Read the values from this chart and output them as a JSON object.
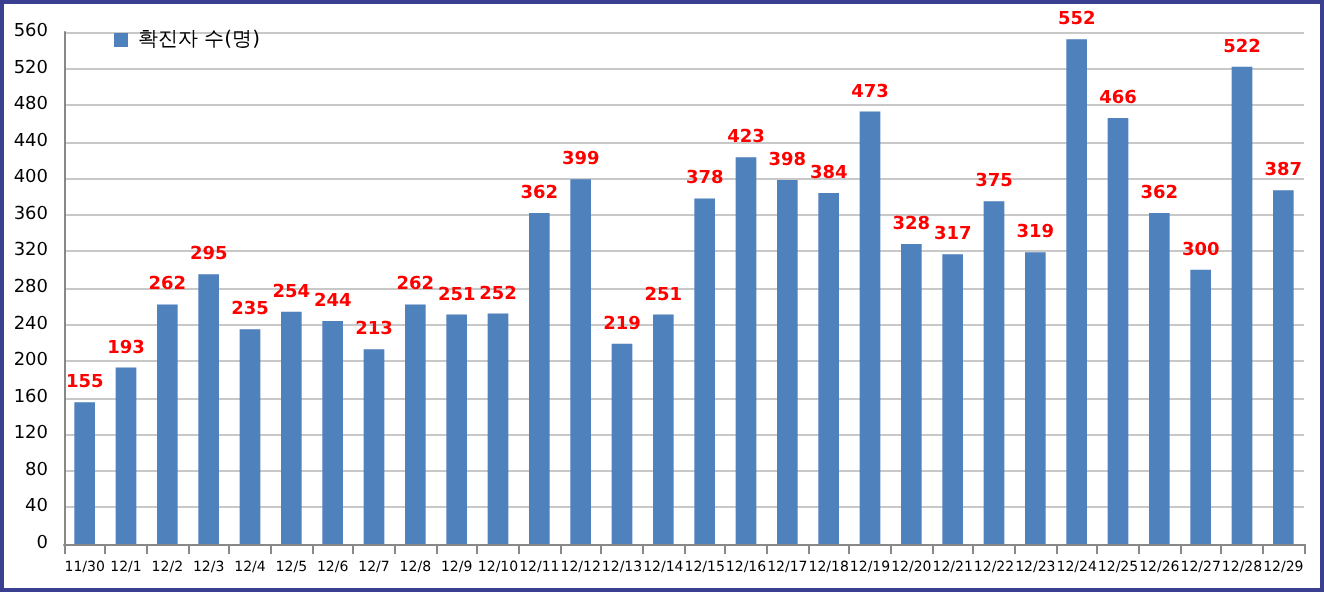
{
  "chart_data": {
    "type": "bar",
    "categories": [
      "11/30",
      "12/1",
      "12/2",
      "12/3",
      "12/4",
      "12/5",
      "12/6",
      "12/7",
      "12/8",
      "12/9",
      "12/10",
      "12/11",
      "12/12",
      "12/13",
      "12/14",
      "12/15",
      "12/16",
      "12/17",
      "12/18",
      "12/19",
      "12/20",
      "12/21",
      "12/22",
      "12/23",
      "12/24",
      "12/25",
      "12/26",
      "12/27",
      "12/28",
      "12/29"
    ],
    "series": [
      {
        "name": "확진자 수(명)",
        "color": "#4f81bd",
        "values": [
          155,
          193,
          262,
          295,
          235,
          254,
          244,
          213,
          262,
          251,
          252,
          362,
          399,
          219,
          251,
          378,
          423,
          398,
          384,
          473,
          328,
          317,
          375,
          319,
          552,
          466,
          362,
          300,
          522,
          387
        ]
      }
    ],
    "ylim": [
      0,
      560
    ],
    "yticks": [
      0,
      40,
      80,
      120,
      160,
      200,
      240,
      280,
      320,
      360,
      400,
      440,
      480,
      520,
      560
    ],
    "grid": "y",
    "legend": "top left",
    "data_labels": true
  }
}
